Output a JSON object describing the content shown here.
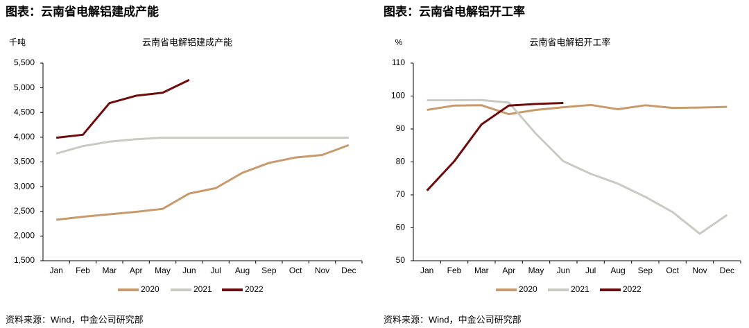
{
  "chart_data": [
    {
      "type": "line",
      "heading": "图表：云南省电解铝建成产能",
      "title": "云南省电解铝建成产能",
      "y_label": "千吨",
      "source": "资料来源：Wind，中金公司研究部",
      "categories": [
        "Jan",
        "Feb",
        "Mar",
        "Apr",
        "May",
        "Jun",
        "Jul",
        "Aug",
        "Sep",
        "Oct",
        "Nov",
        "Dec"
      ],
      "ylim": [
        1500,
        5500
      ],
      "yticks": [
        {
          "value": 1500,
          "label": "1,500"
        },
        {
          "value": 2000,
          "label": "2,000"
        },
        {
          "value": 2500,
          "label": "2,500"
        },
        {
          "value": 3000,
          "label": "3,000"
        },
        {
          "value": 3500,
          "label": "3,500"
        },
        {
          "value": 4000,
          "label": "4,000"
        },
        {
          "value": 4500,
          "label": "4,500"
        },
        {
          "value": 5000,
          "label": "5,000"
        },
        {
          "value": 5500,
          "label": "5,500"
        }
      ],
      "legend": "bottom",
      "series": [
        {
          "name": "2020",
          "color": "#c89a6b",
          "values": [
            2330,
            2390,
            2440,
            2490,
            2550,
            2860,
            2970,
            3280,
            3480,
            3590,
            3640,
            3840
          ]
        },
        {
          "name": "2021",
          "color": "#c9cac1",
          "values": [
            3670,
            3820,
            3910,
            3960,
            3990,
            3990,
            3990,
            3990,
            3990,
            3990,
            3990,
            3990
          ]
        },
        {
          "name": "2022",
          "color": "#6e0b0b",
          "values": [
            3990,
            4050,
            4690,
            4840,
            4900,
            5160,
            null,
            null,
            null,
            null,
            null,
            null
          ]
        }
      ]
    },
    {
      "type": "line",
      "heading": "图表：云南省电解铝开工率",
      "title": "云南省电解铝开工率",
      "y_label": "%",
      "source": "资料来源：Wind，中金公司研究部",
      "categories": [
        "Jan",
        "Feb",
        "Mar",
        "Apr",
        "May",
        "Jun",
        "Jul",
        "Aug",
        "Sep",
        "Oct",
        "Nov",
        "Dec"
      ],
      "ylim": [
        50,
        110
      ],
      "yticks": [
        50,
        60,
        70,
        80,
        90,
        100,
        110
      ],
      "legend": "bottom",
      "series": [
        {
          "name": "2020",
          "color": "#c89a6b",
          "values": [
            95.8,
            97.1,
            97.2,
            94.5,
            95.8,
            96.6,
            97.3,
            96.0,
            97.2,
            96.4,
            96.5,
            96.7
          ]
        },
        {
          "name": "2021",
          "color": "#c9cac1",
          "values": [
            98.7,
            98.7,
            98.8,
            98.0,
            88.5,
            80.2,
            76.4,
            73.4,
            69.4,
            64.8,
            58.2,
            63.9
          ]
        },
        {
          "name": "2022",
          "color": "#6e0b0b",
          "values": [
            71.3,
            80.2,
            91.4,
            97.1,
            97.6,
            97.9,
            null,
            null,
            null,
            null,
            null,
            null
          ]
        }
      ]
    }
  ]
}
